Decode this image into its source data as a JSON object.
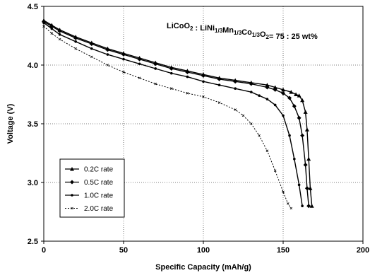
{
  "chart_data": {
    "type": "line",
    "title": "",
    "xlabel": "Specific Capacity (mAh/g)",
    "ylabel": "Voltage (V)",
    "xlim": [
      0,
      200
    ],
    "ylim": [
      2.5,
      4.5
    ],
    "xticks": [
      "0",
      "50",
      "100",
      "150",
      "200"
    ],
    "yticks": [
      "2.5",
      "3.0",
      "3.5",
      "4.0",
      "4.5"
    ],
    "grid": true,
    "legend_position": "bottom-left",
    "annotation": {
      "parts": [
        {
          "t": "LiCoO",
          "sub": false
        },
        {
          "t": "2",
          "sub": true
        },
        {
          "t": " : LiNi",
          "sub": false
        },
        {
          "t": "1/3",
          "sub": true
        },
        {
          "t": "Mn",
          "sub": false
        },
        {
          "t": "1/3",
          "sub": true
        },
        {
          "t": "Co",
          "sub": false
        },
        {
          "t": "1/3",
          "sub": true
        },
        {
          "t": "O",
          "sub": false
        },
        {
          "t": "2",
          "sub": true
        },
        {
          "t": "= 75 : 25 wt%",
          "sub": false
        }
      ]
    },
    "series": [
      {
        "name": "0.2C rate",
        "marker": "triangle",
        "dash": "",
        "x": [
          0,
          5,
          10,
          20,
          30,
          40,
          50,
          60,
          70,
          80,
          90,
          100,
          110,
          120,
          130,
          140,
          145,
          150,
          155,
          158,
          160,
          162,
          164,
          165,
          166,
          167,
          168
        ],
        "y": [
          4.38,
          4.34,
          4.3,
          4.24,
          4.19,
          4.14,
          4.1,
          4.06,
          4.02,
          3.98,
          3.95,
          3.92,
          3.89,
          3.87,
          3.85,
          3.83,
          3.81,
          3.79,
          3.77,
          3.75,
          3.74,
          3.7,
          3.6,
          3.45,
          3.2,
          2.95,
          2.8
        ]
      },
      {
        "name": "0.5C rate",
        "marker": "diamond",
        "dash": "",
        "x": [
          0,
          5,
          10,
          20,
          30,
          40,
          50,
          60,
          70,
          80,
          90,
          100,
          110,
          120,
          130,
          140,
          145,
          150,
          154,
          157,
          160,
          162,
          164,
          165,
          166
        ],
        "y": [
          4.37,
          4.33,
          4.29,
          4.23,
          4.18,
          4.13,
          4.09,
          4.05,
          4.01,
          3.97,
          3.94,
          3.91,
          3.88,
          3.86,
          3.84,
          3.81,
          3.79,
          3.76,
          3.72,
          3.65,
          3.55,
          3.4,
          3.15,
          2.95,
          2.8
        ]
      },
      {
        "name": "1.0C rate",
        "marker": "dot",
        "dash": "",
        "x": [
          0,
          5,
          10,
          20,
          30,
          40,
          50,
          60,
          70,
          80,
          90,
          100,
          110,
          120,
          130,
          135,
          140,
          145,
          150,
          154,
          157,
          160,
          162
        ],
        "y": [
          4.36,
          4.31,
          4.26,
          4.2,
          4.14,
          4.09,
          4.05,
          4.01,
          3.97,
          3.93,
          3.9,
          3.86,
          3.83,
          3.8,
          3.77,
          3.74,
          3.71,
          3.66,
          3.57,
          3.4,
          3.2,
          2.98,
          2.8
        ]
      },
      {
        "name": "2.0C rate",
        "marker": "x",
        "dash": "2,2",
        "x": [
          0,
          5,
          10,
          20,
          30,
          40,
          50,
          60,
          70,
          80,
          90,
          100,
          110,
          120,
          125,
          130,
          135,
          140,
          145,
          150,
          153,
          155
        ],
        "y": [
          4.33,
          4.27,
          4.22,
          4.14,
          4.07,
          4.0,
          3.94,
          3.89,
          3.84,
          3.8,
          3.76,
          3.73,
          3.68,
          3.62,
          3.57,
          3.5,
          3.4,
          3.27,
          3.1,
          2.92,
          2.82,
          2.78
        ]
      }
    ]
  }
}
